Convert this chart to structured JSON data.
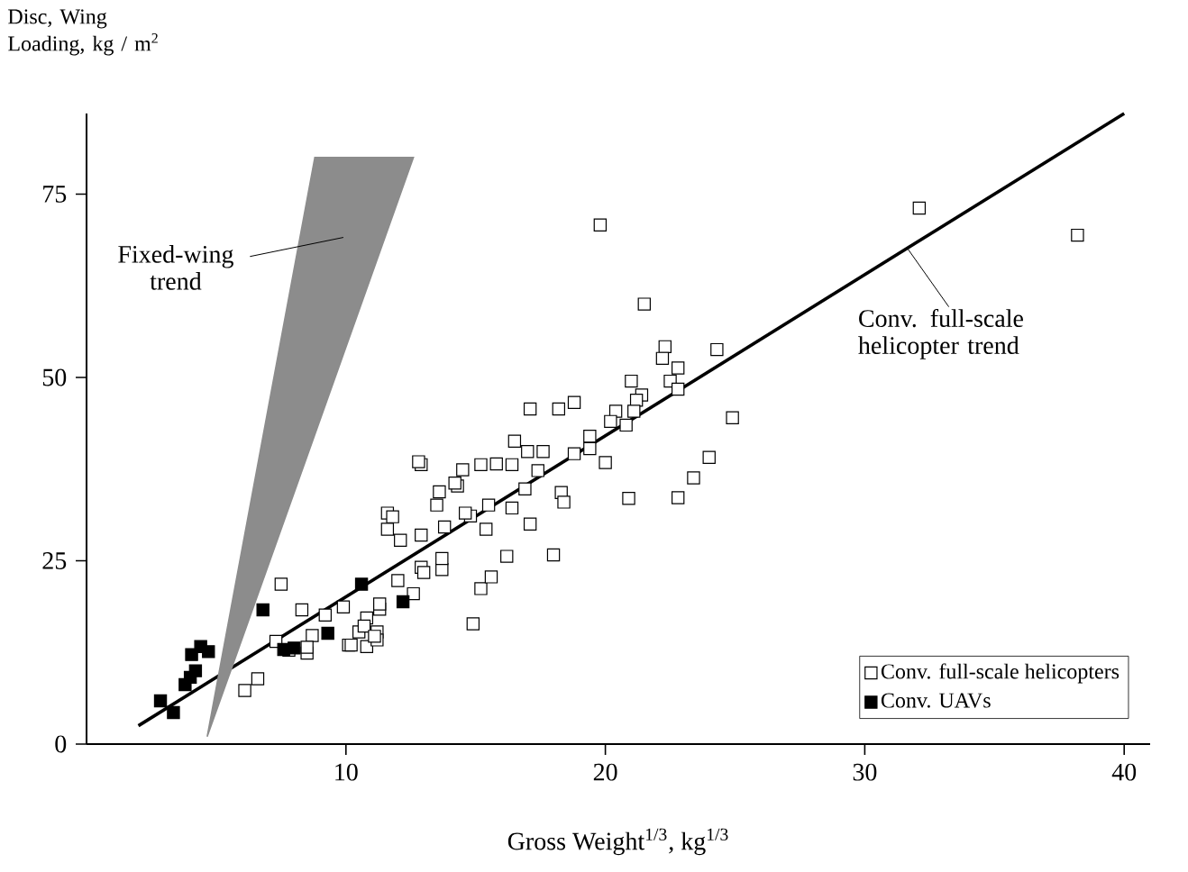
{
  "chart_data": {
    "type": "scatter",
    "xlabel": "Gross Weight$^{1/3}$, kg$^{1/3}$",
    "ylabel": "Disc, Wing Loading, kg / m$^{2}$",
    "xlim": [
      0,
      41
    ],
    "ylim": [
      0,
      86
    ],
    "xticks": [
      10,
      20,
      30,
      40
    ],
    "yticks": [
      0,
      25,
      50,
      75
    ],
    "grid": false,
    "legend": "bottom right",
    "marker": "square",
    "series": [
      {
        "name": "Conv. full-scale helicopters",
        "color": "#ffffff",
        "x": [
          19.8,
          32.1,
          38.2,
          21.5,
          22.3,
          22.2,
          22.8,
          24.3,
          21.0,
          22.5,
          22.8,
          21.4,
          21.2,
          20.4,
          21.1,
          20.2,
          20.8,
          24.9,
          18.8,
          18.2,
          17.1,
          16.5,
          17.0,
          17.6,
          18.8,
          19.4,
          19.4,
          20.0,
          17.4,
          16.4,
          24.0,
          23.4,
          22.8,
          20.9,
          16.9,
          18.3,
          18.4,
          17.1,
          18.0,
          16.2,
          16.4,
          6.1,
          6.6,
          7.5,
          8.3,
          9.2,
          9.9,
          7.3,
          7.8,
          8.5,
          8.7,
          10.1,
          10.8,
          10.5,
          11.2,
          11.2,
          10.8,
          11.3,
          12.0,
          12.6,
          11.6,
          11.8,
          11.6,
          12.1,
          12.9,
          12.9,
          13.0,
          13.7,
          13.7,
          14.9,
          15.2,
          15.6,
          13.5,
          13.6,
          14.3,
          13.8,
          15.4,
          14.8,
          15.5,
          14.5,
          12.9,
          12.8,
          15.2,
          15.8,
          14.2,
          14.6,
          11.3,
          10.7,
          11.1,
          10.2,
          8.5
        ],
        "values": [
          70.8,
          73.1,
          69.4,
          60.0,
          54.2,
          52.6,
          51.3,
          53.8,
          49.5,
          49.5,
          48.4,
          47.6,
          46.9,
          45.4,
          45.4,
          44.0,
          43.5,
          44.5,
          46.6,
          45.7,
          45.7,
          41.3,
          39.9,
          39.9,
          39.6,
          42.0,
          40.3,
          38.4,
          37.3,
          38.1,
          39.1,
          36.3,
          33.6,
          33.5,
          34.8,
          34.3,
          33.0,
          30.0,
          25.8,
          25.6,
          32.2,
          7.3,
          8.9,
          21.8,
          18.3,
          17.6,
          18.7,
          14.0,
          12.8,
          12.4,
          14.8,
          13.5,
          13.3,
          15.3,
          15.3,
          14.2,
          17.2,
          18.4,
          22.3,
          20.5,
          31.5,
          31.0,
          29.3,
          27.8,
          28.5,
          24.1,
          23.4,
          23.8,
          25.3,
          16.4,
          21.2,
          22.8,
          32.6,
          34.4,
          35.2,
          29.6,
          29.3,
          31.1,
          32.6,
          37.4,
          38.1,
          38.5,
          38.1,
          38.2,
          35.6,
          31.5,
          19.1,
          16.1,
          14.7,
          13.5,
          13.2
        ]
      },
      {
        "name": "Conv. UAVs",
        "color": "#000000",
        "x": [
          2.85,
          3.35,
          3.8,
          4.0,
          4.2,
          4.05,
          4.4,
          4.7,
          6.8,
          7.6,
          8.0,
          9.3,
          10.6,
          12.2
        ],
        "values": [
          5.9,
          4.3,
          8.1,
          9.1,
          10.0,
          12.2,
          13.3,
          12.6,
          18.3,
          12.9,
          13.1,
          15.1,
          21.8,
          19.4
        ]
      },
      {
        "name": "Conv. full-scale helicopter trend",
        "type": "line",
        "color": "#000000",
        "line_style": "solid",
        "marker": "none",
        "x": [
          2.0,
          40.0
        ],
        "values": [
          2.5,
          86.0
        ]
      },
      {
        "name": "Fixed-wing trend",
        "type": "line",
        "marker": "none",
        "x": [
          4.65,
          8.8,
          12.6
        ],
        "values": [
          null,
          null,
          null
        ],
        "lower": [
          1.0,
          42.2,
          80.0
        ],
        "upper": [
          1.0,
          80.0,
          80.0
        ]
      }
    ]
  }
}
